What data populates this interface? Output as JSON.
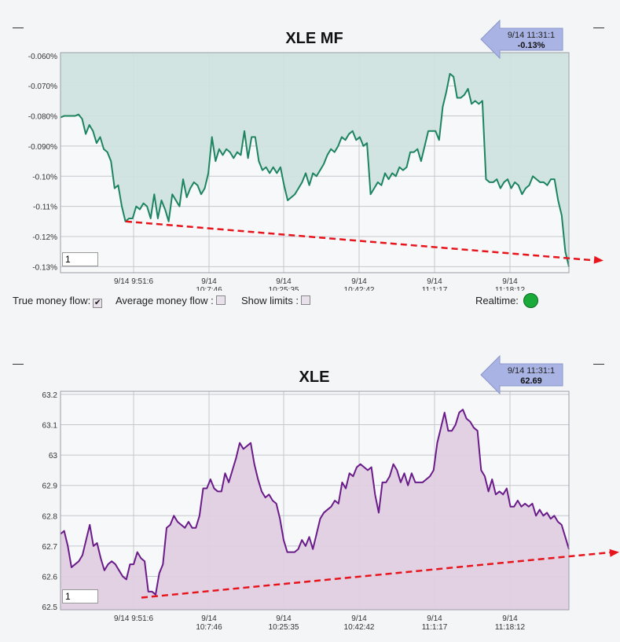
{
  "chart_data": [
    {
      "type": "area",
      "title": "XLE MF",
      "xlabel": "",
      "ylabel": "",
      "ylim": [
        -0.132,
        -0.059
      ],
      "y_ticks": [
        "-0.060%",
        "-0.070%",
        "-0.080%",
        "-0.090%",
        "-0.10%",
        "-0.11%",
        "-0.12%",
        "-0.13%"
      ],
      "y_tick_values": [
        -0.06,
        -0.07,
        -0.08,
        -0.09,
        -0.1,
        -0.11,
        -0.12,
        -0.13
      ],
      "x_ticks": [
        {
          "l1": "9/14 9:51:6",
          "l2": ""
        },
        {
          "l1": "9/14",
          "l2": "10:7:46"
        },
        {
          "l1": "9/14",
          "l2": "10:25:35"
        },
        {
          "l1": "9/14",
          "l2": "10:42:42"
        },
        {
          "l1": "9/14",
          "l2": "11:1:17"
        },
        {
          "l1": "9/14",
          "l2": "11:18:12"
        }
      ],
      "tooltip": {
        "time": "9/14 11:31:1",
        "value": "-0.13%"
      },
      "range_input": "1",
      "line_color": "#1d8460",
      "fill_color": "#cfe3df",
      "trend": {
        "from": [
          -0.115
        ],
        "to": [
          -0.128
        ],
        "color": "#e8141c"
      },
      "values": [
        -0.0805,
        -0.08,
        -0.08,
        -0.08,
        -0.08,
        -0.0795,
        -0.081,
        -0.086,
        -0.083,
        -0.085,
        -0.089,
        -0.087,
        -0.091,
        -0.092,
        -0.095,
        -0.104,
        -0.103,
        -0.11,
        -0.115,
        -0.114,
        -0.114,
        -0.11,
        -0.111,
        -0.109,
        -0.11,
        -0.114,
        -0.106,
        -0.114,
        -0.108,
        -0.111,
        -0.115,
        -0.106,
        -0.108,
        -0.11,
        -0.101,
        -0.107,
        -0.104,
        -0.102,
        -0.103,
        -0.106,
        -0.104,
        -0.099,
        -0.087,
        -0.095,
        -0.091,
        -0.093,
        -0.091,
        -0.092,
        -0.094,
        -0.092,
        -0.093,
        -0.085,
        -0.094,
        -0.087,
        -0.087,
        -0.095,
        -0.098,
        -0.097,
        -0.099,
        -0.097,
        -0.099,
        -0.097,
        -0.103,
        -0.108,
        -0.107,
        -0.106,
        -0.104,
        -0.102,
        -0.099,
        -0.103,
        -0.099,
        -0.1,
        -0.098,
        -0.096,
        -0.093,
        -0.091,
        -0.092,
        -0.09,
        -0.087,
        -0.088,
        -0.086,
        -0.085,
        -0.088,
        -0.087,
        -0.09,
        -0.089,
        -0.106,
        -0.104,
        -0.102,
        -0.103,
        -0.099,
        -0.101,
        -0.099,
        -0.1,
        -0.097,
        -0.098,
        -0.097,
        -0.092,
        -0.092,
        -0.091,
        -0.095,
        -0.09,
        -0.085,
        -0.085,
        -0.085,
        -0.088,
        -0.077,
        -0.072,
        -0.066,
        -0.067,
        -0.074,
        -0.074,
        -0.073,
        -0.071,
        -0.076,
        -0.075,
        -0.076,
        -0.075,
        -0.101,
        -0.102,
        -0.102,
        -0.101,
        -0.104,
        -0.102,
        -0.101,
        -0.104,
        -0.102,
        -0.103,
        -0.106,
        -0.104,
        -0.103,
        -0.1,
        -0.101,
        -0.102,
        -0.102,
        -0.103,
        -0.101,
        -0.101,
        -0.108,
        -0.113,
        -0.125,
        -0.13
      ]
    },
    {
      "type": "area",
      "title": "XLE",
      "xlabel": "",
      "ylabel": "",
      "ylim": [
        62.49,
        63.21
      ],
      "y_ticks": [
        "63.2",
        "63.1",
        "63",
        "62.9",
        "62.8",
        "62.7",
        "62.6",
        "62.5"
      ],
      "y_tick_values": [
        63.2,
        63.1,
        63.0,
        62.9,
        62.8,
        62.7,
        62.6,
        62.5
      ],
      "x_ticks": [
        {
          "l1": "9/14 9:51:6",
          "l2": ""
        },
        {
          "l1": "9/14",
          "l2": "10:7:46"
        },
        {
          "l1": "9/14",
          "l2": "10:25:35"
        },
        {
          "l1": "9/14",
          "l2": "10:42:42"
        },
        {
          "l1": "9/14",
          "l2": "11:1:17"
        },
        {
          "l1": "9/14",
          "l2": "11:18:12"
        }
      ],
      "tooltip": {
        "time": "9/14 11:31:1",
        "value": "62.69"
      },
      "range_input": "1",
      "line_color": "#6a1b8a",
      "fill_color": "#e0cfe2",
      "trend": {
        "from": [
          62.53
        ],
        "to": [
          62.68
        ],
        "color": "#e8141c"
      },
      "values": [
        62.74,
        62.75,
        62.7,
        62.63,
        62.64,
        62.65,
        62.67,
        62.72,
        62.77,
        62.7,
        62.71,
        62.66,
        62.62,
        62.64,
        62.65,
        62.64,
        62.62,
        62.6,
        62.59,
        62.64,
        62.64,
        62.68,
        62.66,
        62.65,
        62.55,
        62.55,
        62.54,
        62.61,
        62.64,
        62.76,
        62.77,
        62.8,
        62.78,
        62.77,
        62.76,
        62.78,
        62.76,
        62.76,
        62.8,
        62.89,
        62.89,
        62.92,
        62.89,
        62.88,
        62.88,
        62.94,
        62.91,
        62.95,
        62.99,
        63.04,
        63.02,
        63.03,
        63.04,
        62.97,
        62.92,
        62.88,
        62.86,
        62.87,
        62.85,
        62.84,
        62.79,
        62.72,
        62.68,
        62.68,
        62.68,
        62.69,
        62.72,
        62.7,
        62.73,
        62.69,
        62.74,
        62.79,
        62.81,
        62.82,
        62.83,
        62.85,
        62.84,
        62.91,
        62.89,
        62.94,
        62.93,
        62.96,
        62.97,
        62.96,
        62.95,
        62.96,
        62.87,
        62.81,
        62.91,
        62.91,
        62.93,
        62.97,
        62.95,
        62.91,
        62.94,
        62.9,
        62.94,
        62.91,
        62.91,
        62.91,
        62.92,
        62.93,
        62.95,
        63.04,
        63.09,
        63.14,
        63.08,
        63.08,
        63.1,
        63.14,
        63.15,
        63.12,
        63.11,
        63.09,
        63.08,
        62.95,
        62.93,
        62.88,
        62.92,
        62.87,
        62.88,
        62.87,
        62.89,
        62.83,
        62.83,
        62.85,
        62.83,
        62.84,
        62.83,
        62.84,
        62.8,
        62.82,
        62.8,
        62.81,
        62.79,
        62.8,
        62.78,
        62.77,
        62.73,
        62.69
      ]
    }
  ]
}
